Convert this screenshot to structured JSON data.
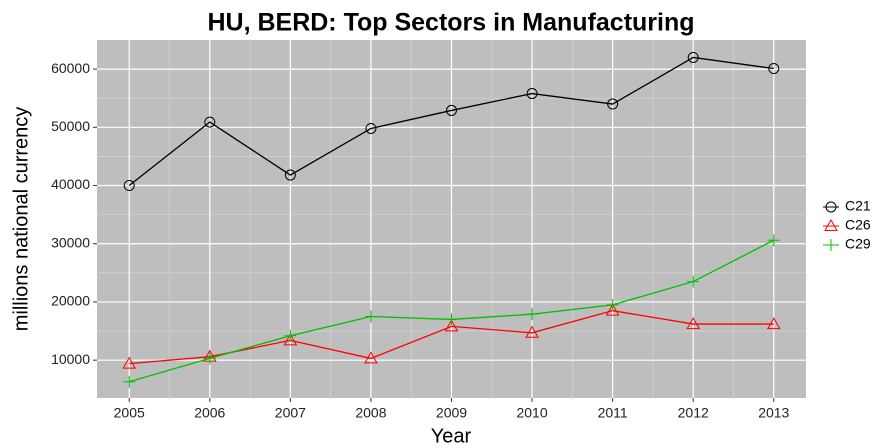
{
  "chart_data": {
    "type": "line",
    "title": "HU, BERD: Top Sectors in Manufacturing",
    "xlabel": "Year",
    "ylabel": "millions national currency",
    "x": [
      2005,
      2006,
      2007,
      2008,
      2009,
      2010,
      2011,
      2012,
      2013
    ],
    "series": [
      {
        "name": "C21",
        "color": "#000000",
        "shape": "circle",
        "values": [
          40000,
          50900,
          41800,
          49800,
          52900,
          55800,
          54000,
          62000,
          60100
        ]
      },
      {
        "name": "C26",
        "color": "#ff0000",
        "shape": "triangle",
        "values": [
          9400,
          10600,
          13400,
          10300,
          15800,
          14700,
          18500,
          16200,
          16200
        ]
      },
      {
        "name": "C29",
        "color": "#00c000",
        "shape": "plus",
        "values": [
          6300,
          10300,
          14200,
          17500,
          17000,
          17900,
          19500,
          23500,
          30600
        ]
      }
    ],
    "xlim": [
      2004.6,
      2013.4
    ],
    "xticks": [
      2005,
      2006,
      2007,
      2008,
      2009,
      2010,
      2011,
      2012,
      2013
    ],
    "ylim": [
      3500,
      65000
    ],
    "yticks": [
      10000,
      20000,
      30000,
      40000,
      50000,
      60000
    ],
    "grid": true,
    "legend": "right"
  }
}
